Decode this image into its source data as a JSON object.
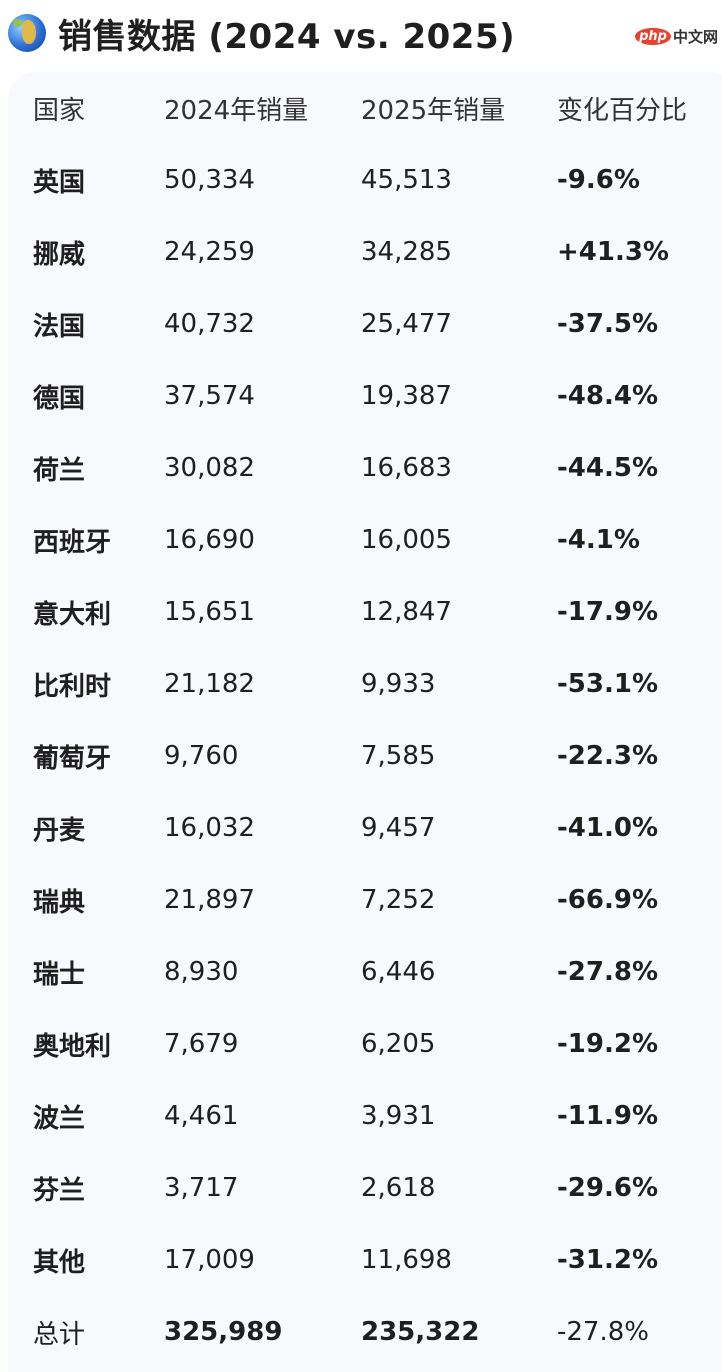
{
  "title": "销售数据 (2024 vs. 2025)",
  "title_icon": "globe-africa-icon",
  "watermark": {
    "logo": "php",
    "text": "中文网"
  },
  "table": {
    "headers": [
      "国家",
      "2024年销量",
      "2025年销量",
      "变化百分比"
    ],
    "rows": [
      {
        "country": "英国",
        "y2024": "50,334",
        "y2025": "45,513",
        "change": "-9.6%"
      },
      {
        "country": "挪威",
        "y2024": "24,259",
        "y2025": "34,285",
        "change": "+41.3%"
      },
      {
        "country": "法国",
        "y2024": "40,732",
        "y2025": "25,477",
        "change": "-37.5%"
      },
      {
        "country": "德国",
        "y2024": "37,574",
        "y2025": "19,387",
        "change": "-48.4%"
      },
      {
        "country": "荷兰",
        "y2024": "30,082",
        "y2025": "16,683",
        "change": "-44.5%"
      },
      {
        "country": "西班牙",
        "y2024": "16,690",
        "y2025": "16,005",
        "change": "-4.1%"
      },
      {
        "country": "意大利",
        "y2024": "15,651",
        "y2025": "12,847",
        "change": "-17.9%"
      },
      {
        "country": "比利时",
        "y2024": "21,182",
        "y2025": "9,933",
        "change": "-53.1%"
      },
      {
        "country": "葡萄牙",
        "y2024": "9,760",
        "y2025": "7,585",
        "change": "-22.3%"
      },
      {
        "country": "丹麦",
        "y2024": "16,032",
        "y2025": "9,457",
        "change": "-41.0%"
      },
      {
        "country": "瑞典",
        "y2024": "21,897",
        "y2025": "7,252",
        "change": "-66.9%"
      },
      {
        "country": "瑞士",
        "y2024": "8,930",
        "y2025": "6,446",
        "change": "-27.8%"
      },
      {
        "country": "奥地利",
        "y2024": "7,679",
        "y2025": "6,205",
        "change": "-19.2%"
      },
      {
        "country": "波兰",
        "y2024": "4,461",
        "y2025": "3,931",
        "change": "-11.9%"
      },
      {
        "country": "芬兰",
        "y2024": "3,717",
        "y2025": "2,618",
        "change": "-29.6%"
      },
      {
        "country": "其他",
        "y2024": "17,009",
        "y2025": "11,698",
        "change": "-31.2%"
      }
    ],
    "total": {
      "country": "总计",
      "y2024": "325,989",
      "y2025": "235,322",
      "change": "-27.8%"
    }
  }
}
